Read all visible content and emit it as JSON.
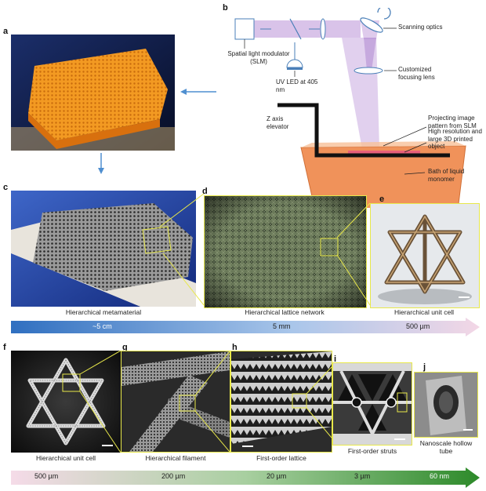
{
  "panels": {
    "a": "a",
    "b": "b",
    "c": "c",
    "d": "d",
    "e": "e",
    "f": "f",
    "g": "g",
    "h": "h",
    "i": "i",
    "j": "j"
  },
  "schematic": {
    "slm": "Spatial light modulator (SLM)",
    "uv_led": "UV LED at 405 nm",
    "scanning": "Scanning optics",
    "lens": "Customized focusing lens",
    "z_axis": "Z axis elevator",
    "projecting": "Projecting image pattern from SLM",
    "object": "High resolution and large 3D printed object",
    "bath": "Bath of liquid monomer"
  },
  "captions_top": [
    "Hierarchical metamaterial",
    "Hierarchical lattice network",
    "Hierarchical unit cell"
  ],
  "scale_top": [
    "~5 cm",
    "5 mm",
    "500 µm"
  ],
  "captions_bottom": [
    "Hierarchical unit cell",
    "Hierarchical filament",
    "First-order lattice",
    "First-order struts",
    "Nanoscale hollow tube"
  ],
  "scale_bottom": [
    "500 µm",
    "200 µm",
    "20 µm",
    "3 µm",
    "60 nm"
  ],
  "colors": {
    "top_bar_start": "#2f6fc0",
    "top_bar_end": "#f3d7e6",
    "bottom_bar_start": "#f5dbe8",
    "bottom_bar_end": "#2d8a2a",
    "highlight": "#e8e84a",
    "beam": "#c9a9e0",
    "bath": "#f0925a"
  }
}
